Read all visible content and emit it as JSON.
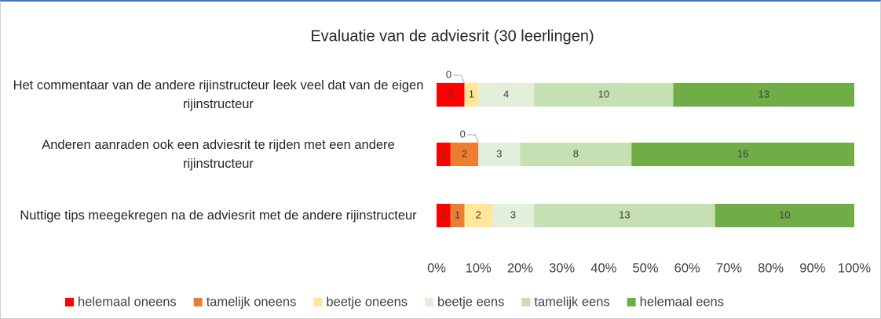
{
  "chart_data": {
    "type": "stacked-bar-percent",
    "orientation": "horizontal",
    "title": "Evaluatie van de adviesrit (30 leerlingen)",
    "categories": [
      "Het commentaar van de andere rijinstructeur leek veel dat van de eigen rijinstructeur",
      "Anderen aanraden ook een adviesrit te rijden met een andere rijinstructeur",
      "Nuttige tips meegekregen na de adviesrit met de andere rijinstructeur"
    ],
    "series": [
      {
        "name": "helemaal oneens",
        "color": "#ff0000",
        "values": [
          2,
          1,
          1
        ]
      },
      {
        "name": "tamelijk oneens",
        "color": "#ed7d31",
        "values": [
          0,
          2,
          1
        ]
      },
      {
        "name": "beetje oneens",
        "color": "#ffe699",
        "values": [
          1,
          0,
          2
        ]
      },
      {
        "name": "beetje eens",
        "color": "#e2efda",
        "values": [
          4,
          3,
          3
        ]
      },
      {
        "name": "tamelijk eens",
        "color": "#c6e0b4",
        "values": [
          10,
          8,
          13
        ]
      },
      {
        "name": "helemaal eens",
        "color": "#70ad47",
        "values": [
          13,
          16,
          10
        ]
      }
    ],
    "xlim": [
      0,
      100
    ],
    "xticks": [
      {
        "value": 0,
        "label": "0%"
      },
      {
        "value": 10,
        "label": "10%"
      },
      {
        "value": 20,
        "label": "20%"
      },
      {
        "value": 30,
        "label": "30%"
      },
      {
        "value": 40,
        "label": "40%"
      },
      {
        "value": 50,
        "label": "50%"
      },
      {
        "value": 60,
        "label": "60%"
      },
      {
        "value": 70,
        "label": "70%"
      },
      {
        "value": 80,
        "label": "80%"
      },
      {
        "value": 90,
        "label": "90%"
      },
      {
        "value": 100,
        "label": "100%"
      }
    ],
    "legend": "bottom"
  }
}
